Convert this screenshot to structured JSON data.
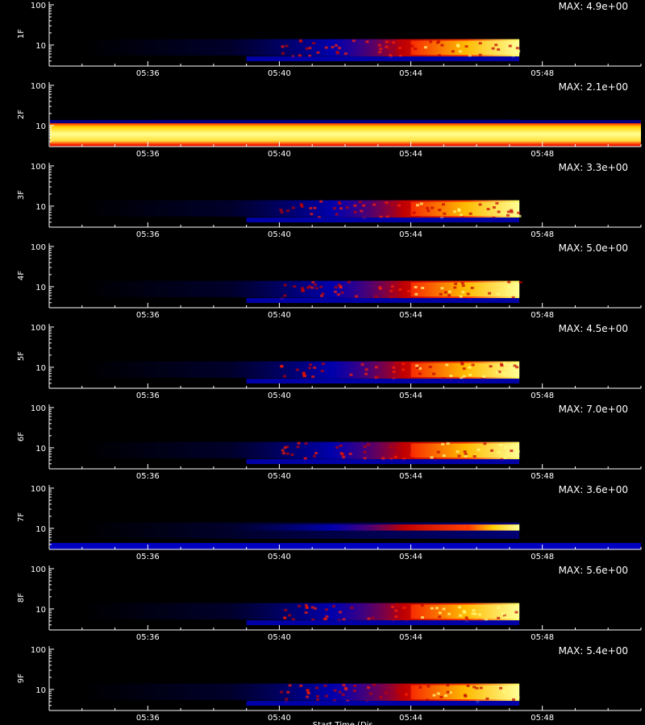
{
  "chart_data": {
    "type": "heatmap",
    "title": "",
    "colormap": [
      "#000000",
      "#0a0a5a",
      "#0000ff",
      "#c00000",
      "#ff2000",
      "#ffd000",
      "#ffff70",
      "#ffffff"
    ],
    "x_axis": {
      "scale": "time",
      "range": [
        "05:33",
        "05:51"
      ],
      "tick_labels": [
        "05:36",
        "05:40",
        "05:44",
        "05:48"
      ],
      "tick_values_min": [
        3,
        7,
        11,
        15
      ]
    },
    "y_axis": {
      "scale": "log",
      "range": [
        3,
        120
      ],
      "tick_labels": [
        "10",
        "100"
      ],
      "tick_values": [
        10,
        100
      ]
    },
    "xlabel_partial": "Start Time (Dis...",
    "panels": [
      {
        "label": "1F",
        "max_text": "MAX: 4.9e+00",
        "max_value": 4.9
      },
      {
        "label": "2F",
        "max_text": "MAX: 2.1e+00",
        "max_value": 2.1
      },
      {
        "label": "3F",
        "max_text": "MAX: 3.3e+00",
        "max_value": 3.3
      },
      {
        "label": "4F",
        "max_text": "MAX: 5.0e+00",
        "max_value": 5.0
      },
      {
        "label": "5F",
        "max_text": "MAX: 4.5e+00",
        "max_value": 4.5
      },
      {
        "label": "6F",
        "max_text": "MAX: 7.0e+00",
        "max_value": 7.0
      },
      {
        "label": "7F",
        "max_text": "MAX: 3.6e+00",
        "max_value": 3.6
      },
      {
        "label": "8F",
        "max_text": "MAX: 5.6e+00",
        "max_value": 5.6
      },
      {
        "label": "9F",
        "max_text": "MAX: 5.4e+00",
        "max_value": 5.4
      }
    ]
  }
}
